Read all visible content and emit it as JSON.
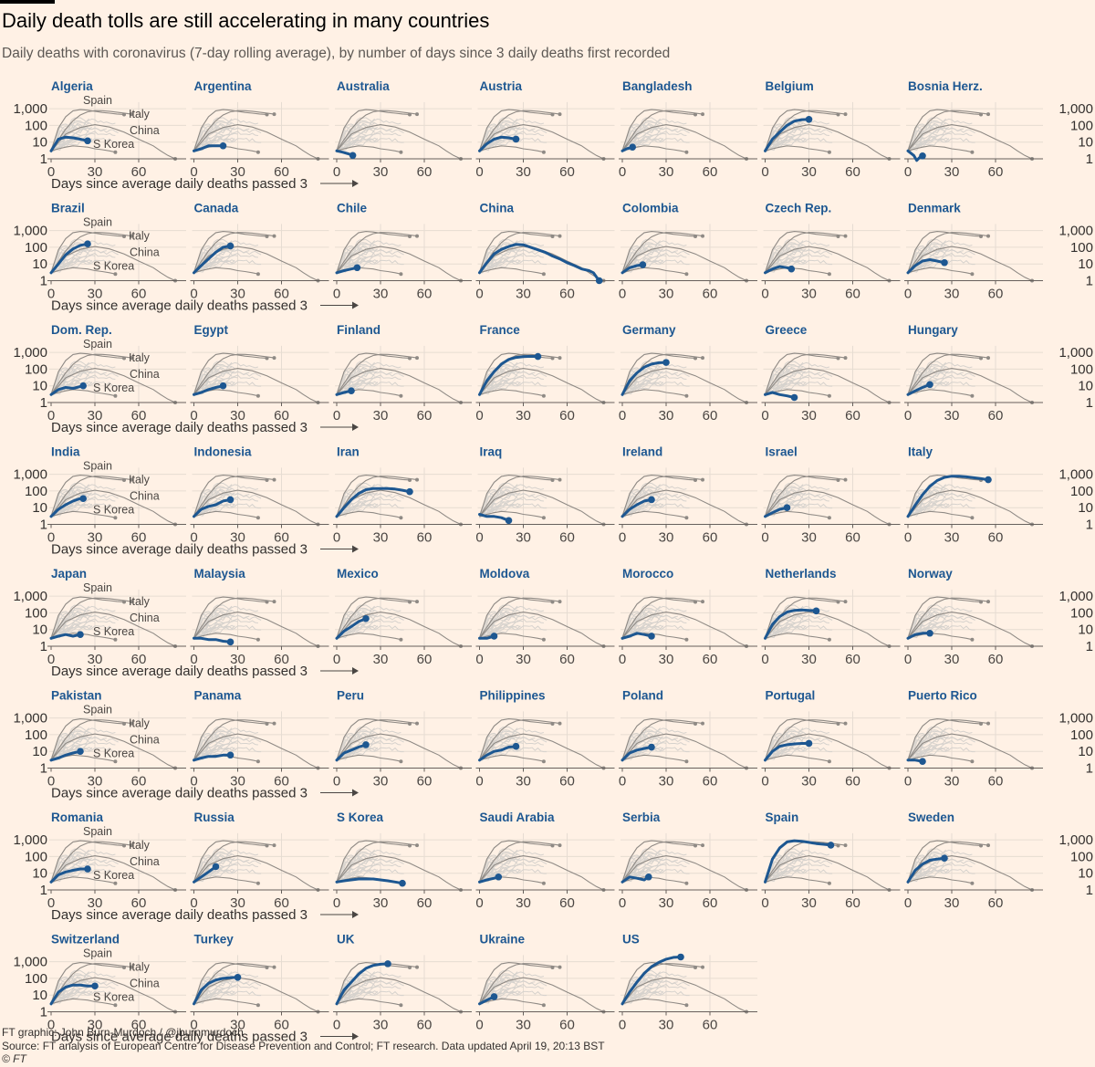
{
  "title": "Daily death tolls are still accelerating in many countries",
  "subtitle": "Daily deaths with coronavirus (7-day rolling average), by number of days since 3 daily deaths first recorded",
  "footer": {
    "credit": "FT graphic: John Burn-Murdoch / @jburnmurdoch",
    "source": "Source: FT analysis of European Centre for Disease Prevention and Control; FT research. Data updated April 19, 20:13 BST",
    "copyright": "© FT"
  },
  "colors": {
    "background": "#fff1e5",
    "highlight": "#1d5791",
    "reference": "#8f8a85",
    "background_lines": "#d6d2cd",
    "axis": "#66605c"
  },
  "chart_data": {
    "type": "line",
    "layout": "small multiples",
    "y_scale": "log",
    "x_label": "Days since average daily deaths passed 3",
    "x_ticks": [
      0,
      30,
      60
    ],
    "y_ticks": [
      1,
      10,
      100,
      1000
    ],
    "y_tick_labels": [
      "1",
      "10",
      "100",
      "1,000"
    ],
    "xlim": [
      0,
      90
    ],
    "ylim": [
      1,
      2500
    ],
    "reference_series": [
      {
        "name": "Spain",
        "x": [
          0,
          5,
          10,
          15,
          20,
          25,
          30,
          35,
          40,
          45,
          50
        ],
        "y": [
          3,
          70,
          330,
          750,
          880,
          820,
          700,
          600,
          540,
          480,
          450
        ]
      },
      {
        "name": "Italy",
        "x": [
          0,
          5,
          10,
          15,
          20,
          25,
          30,
          35,
          40,
          45,
          50,
          55
        ],
        "y": [
          3,
          14,
          60,
          190,
          420,
          650,
          770,
          760,
          700,
          620,
          550,
          470
        ]
      },
      {
        "name": "China",
        "x": [
          0,
          10,
          20,
          30,
          40,
          50,
          60,
          70,
          75,
          80,
          85
        ],
        "y": [
          3,
          30,
          75,
          110,
          80,
          40,
          15,
          6,
          3,
          1.6,
          1
        ]
      },
      {
        "name": "S Korea",
        "x": [
          0,
          5,
          10,
          15,
          20,
          25,
          30,
          35,
          40,
          44
        ],
        "y": [
          3,
          4,
          5,
          6,
          5.5,
          5,
          4,
          3.5,
          3,
          2.5
        ]
      }
    ],
    "countries": [
      {
        "name": "Algeria",
        "x": [
          0,
          5,
          10,
          15,
          20,
          25
        ],
        "y": [
          3,
          15,
          20,
          18,
          15,
          12
        ]
      },
      {
        "name": "Argentina",
        "x": [
          0,
          5,
          10,
          15,
          20
        ],
        "y": [
          3,
          4,
          6,
          6,
          6
        ]
      },
      {
        "name": "Australia",
        "x": [
          0,
          4,
          8,
          11
        ],
        "y": [
          3,
          2.5,
          2,
          1.6
        ]
      },
      {
        "name": "Austria",
        "x": [
          0,
          5,
          10,
          15,
          20,
          25
        ],
        "y": [
          3,
          8,
          15,
          20,
          18,
          15
        ]
      },
      {
        "name": "Bangladesh",
        "x": [
          0,
          3,
          7
        ],
        "y": [
          3,
          4,
          5
        ]
      },
      {
        "name": "Belgium",
        "x": [
          0,
          5,
          10,
          15,
          20,
          25,
          30
        ],
        "y": [
          3,
          15,
          40,
          100,
          180,
          220,
          230
        ]
      },
      {
        "name": "Bosnia Herz.",
        "x": [
          0,
          4,
          6,
          8,
          10
        ],
        "y": [
          3,
          1.6,
          0.8,
          1.2,
          1.5
        ]
      },
      {
        "name": "Brazil",
        "x": [
          0,
          5,
          10,
          15,
          20,
          25
        ],
        "y": [
          3,
          10,
          35,
          80,
          130,
          160
        ]
      },
      {
        "name": "Canada",
        "x": [
          0,
          5,
          10,
          15,
          20,
          25
        ],
        "y": [
          3,
          8,
          20,
          50,
          100,
          120
        ]
      },
      {
        "name": "Chile",
        "x": [
          0,
          5,
          10,
          14
        ],
        "y": [
          3,
          4,
          5,
          6
        ]
      },
      {
        "name": "China",
        "x": [
          0,
          5,
          10,
          15,
          20,
          25,
          30,
          35,
          40,
          45,
          50,
          55,
          60,
          65,
          70,
          75,
          78,
          80,
          82
        ],
        "y": [
          3,
          12,
          40,
          75,
          110,
          150,
          140,
          100,
          70,
          50,
          30,
          20,
          12,
          8,
          5,
          4,
          3,
          1.7,
          1
        ]
      },
      {
        "name": "Colombia",
        "x": [
          0,
          5,
          10,
          14
        ],
        "y": [
          3,
          6,
          8,
          9
        ]
      },
      {
        "name": "Czech Rep.",
        "x": [
          0,
          5,
          10,
          15,
          18
        ],
        "y": [
          3,
          5,
          7,
          6,
          5
        ]
      },
      {
        "name": "Denmark",
        "x": [
          0,
          5,
          10,
          15,
          20,
          25
        ],
        "y": [
          3,
          8,
          15,
          18,
          15,
          12
        ]
      },
      {
        "name": "Dom. Rep.",
        "x": [
          0,
          5,
          10,
          15,
          20,
          22
        ],
        "y": [
          3,
          6,
          8,
          7,
          9,
          10
        ]
      },
      {
        "name": "Egypt",
        "x": [
          0,
          5,
          10,
          15,
          20
        ],
        "y": [
          3,
          4,
          6,
          8,
          10
        ]
      },
      {
        "name": "Finland",
        "x": [
          0,
          5,
          10
        ],
        "y": [
          3,
          4,
          5
        ]
      },
      {
        "name": "France",
        "x": [
          0,
          5,
          10,
          15,
          20,
          25,
          30,
          35,
          40
        ],
        "y": [
          3,
          20,
          70,
          200,
          380,
          500,
          560,
          580,
          570
        ]
      },
      {
        "name": "Germany",
        "x": [
          0,
          5,
          10,
          15,
          20,
          25,
          30
        ],
        "y": [
          3,
          20,
          60,
          130,
          200,
          240,
          250
        ]
      },
      {
        "name": "Greece",
        "x": [
          0,
          5,
          10,
          15,
          20
        ],
        "y": [
          3,
          4,
          3,
          2.5,
          2
        ]
      },
      {
        "name": "Hungary",
        "x": [
          0,
          5,
          10,
          15
        ],
        "y": [
          3,
          5,
          8,
          12
        ]
      },
      {
        "name": "India",
        "x": [
          0,
          5,
          10,
          15,
          20,
          22
        ],
        "y": [
          3,
          8,
          15,
          25,
          35,
          35
        ]
      },
      {
        "name": "Indonesia",
        "x": [
          0,
          5,
          10,
          15,
          20,
          25
        ],
        "y": [
          3,
          8,
          12,
          15,
          25,
          30
        ]
      },
      {
        "name": "Iran",
        "x": [
          0,
          5,
          10,
          15,
          20,
          25,
          30,
          35,
          40,
          45,
          50
        ],
        "y": [
          3,
          10,
          30,
          70,
          120,
          140,
          140,
          140,
          130,
          110,
          90
        ]
      },
      {
        "name": "Iraq",
        "x": [
          0,
          5,
          10,
          15,
          20
        ],
        "y": [
          4,
          3,
          3,
          2.5,
          1.7
        ]
      },
      {
        "name": "Ireland",
        "x": [
          0,
          5,
          10,
          15,
          20
        ],
        "y": [
          3,
          8,
          15,
          25,
          30
        ]
      },
      {
        "name": "Israel",
        "x": [
          0,
          5,
          10,
          15
        ],
        "y": [
          3,
          5,
          8,
          10
        ]
      },
      {
        "name": "Italy",
        "x": [
          0,
          5,
          10,
          15,
          20,
          25,
          30,
          35,
          40,
          45,
          50,
          55
        ],
        "y": [
          3,
          14,
          60,
          190,
          420,
          650,
          770,
          760,
          700,
          620,
          550,
          470
        ]
      },
      {
        "name": "Japan",
        "x": [
          0,
          5,
          10,
          15,
          20
        ],
        "y": [
          3,
          4,
          5,
          4,
          5
        ]
      },
      {
        "name": "Malaysia",
        "x": [
          0,
          5,
          10,
          15,
          20,
          25
        ],
        "y": [
          3,
          3,
          2.5,
          2.5,
          2,
          1.8
        ]
      },
      {
        "name": "Mexico",
        "x": [
          0,
          5,
          10,
          15,
          20
        ],
        "y": [
          3,
          8,
          15,
          30,
          45
        ]
      },
      {
        "name": "Moldova",
        "x": [
          0,
          5,
          10
        ],
        "y": [
          3,
          3,
          4
        ]
      },
      {
        "name": "Morocco",
        "x": [
          0,
          5,
          10,
          15,
          20
        ],
        "y": [
          3,
          4,
          6,
          5,
          4
        ]
      },
      {
        "name": "Netherlands",
        "x": [
          0,
          5,
          10,
          15,
          20,
          25,
          30,
          35
        ],
        "y": [
          3,
          20,
          60,
          110,
          140,
          150,
          140,
          130
        ]
      },
      {
        "name": "Norway",
        "x": [
          0,
          5,
          10,
          15
        ],
        "y": [
          3,
          5,
          6,
          6
        ]
      },
      {
        "name": "Pakistan",
        "x": [
          0,
          5,
          10,
          15,
          20
        ],
        "y": [
          3,
          4,
          6,
          8,
          10
        ]
      },
      {
        "name": "Panama",
        "x": [
          0,
          5,
          10,
          15,
          20,
          25
        ],
        "y": [
          3,
          4,
          5,
          5,
          6,
          6
        ]
      },
      {
        "name": "Peru",
        "x": [
          0,
          5,
          10,
          15,
          20
        ],
        "y": [
          3,
          8,
          12,
          18,
          25
        ]
      },
      {
        "name": "Philippines",
        "x": [
          0,
          5,
          10,
          15,
          20,
          25
        ],
        "y": [
          3,
          6,
          10,
          12,
          18,
          20
        ]
      },
      {
        "name": "Poland",
        "x": [
          0,
          5,
          10,
          15,
          20
        ],
        "y": [
          3,
          8,
          12,
          15,
          18
        ]
      },
      {
        "name": "Portugal",
        "x": [
          0,
          5,
          10,
          15,
          20,
          25,
          30
        ],
        "y": [
          3,
          10,
          20,
          25,
          28,
          30,
          30
        ]
      },
      {
        "name": "Puerto Rico",
        "x": [
          0,
          5,
          10
        ],
        "y": [
          3,
          3,
          2.5
        ]
      },
      {
        "name": "Romania",
        "x": [
          0,
          5,
          10,
          15,
          20,
          25
        ],
        "y": [
          3,
          8,
          12,
          15,
          18,
          18
        ]
      },
      {
        "name": "Russia",
        "x": [
          0,
          5,
          10,
          15
        ],
        "y": [
          3,
          6,
          12,
          25
        ]
      },
      {
        "name": "S Korea",
        "x": [
          0,
          5,
          10,
          15,
          20,
          25,
          30,
          35,
          40,
          45
        ],
        "y": [
          3,
          3.5,
          4,
          4.5,
          4.5,
          4.5,
          4,
          3.5,
          3,
          2.5
        ]
      },
      {
        "name": "Saudi Arabia",
        "x": [
          0,
          5,
          10,
          13
        ],
        "y": [
          3,
          4,
          5,
          6
        ]
      },
      {
        "name": "Serbia",
        "x": [
          0,
          5,
          10,
          15,
          18
        ],
        "y": [
          3,
          6,
          5,
          4,
          6
        ]
      },
      {
        "name": "Spain",
        "x": [
          0,
          5,
          10,
          15,
          20,
          25,
          30,
          35,
          40,
          45
        ],
        "y": [
          3,
          70,
          330,
          750,
          880,
          820,
          700,
          600,
          540,
          480
        ]
      },
      {
        "name": "Sweden",
        "x": [
          0,
          5,
          10,
          15,
          20,
          25
        ],
        "y": [
          3,
          15,
          35,
          60,
          70,
          80
        ]
      },
      {
        "name": "Switzerland",
        "x": [
          0,
          5,
          10,
          15,
          20,
          25,
          30
        ],
        "y": [
          3,
          15,
          30,
          40,
          40,
          35,
          35
        ]
      },
      {
        "name": "Turkey",
        "x": [
          0,
          5,
          10,
          15,
          20,
          25,
          30
        ],
        "y": [
          3,
          20,
          50,
          80,
          100,
          110,
          115
        ]
      },
      {
        "name": "UK",
        "x": [
          0,
          5,
          10,
          15,
          20,
          25,
          30,
          35
        ],
        "y": [
          3,
          20,
          60,
          180,
          400,
          600,
          700,
          750
        ]
      },
      {
        "name": "Ukraine",
        "x": [
          0,
          5,
          10
        ],
        "y": [
          3,
          5,
          8
        ]
      },
      {
        "name": "US",
        "x": [
          0,
          5,
          10,
          15,
          20,
          25,
          30,
          35,
          40
        ],
        "y": [
          3,
          15,
          60,
          200,
          500,
          900,
          1400,
          1800,
          1900
        ]
      }
    ]
  }
}
